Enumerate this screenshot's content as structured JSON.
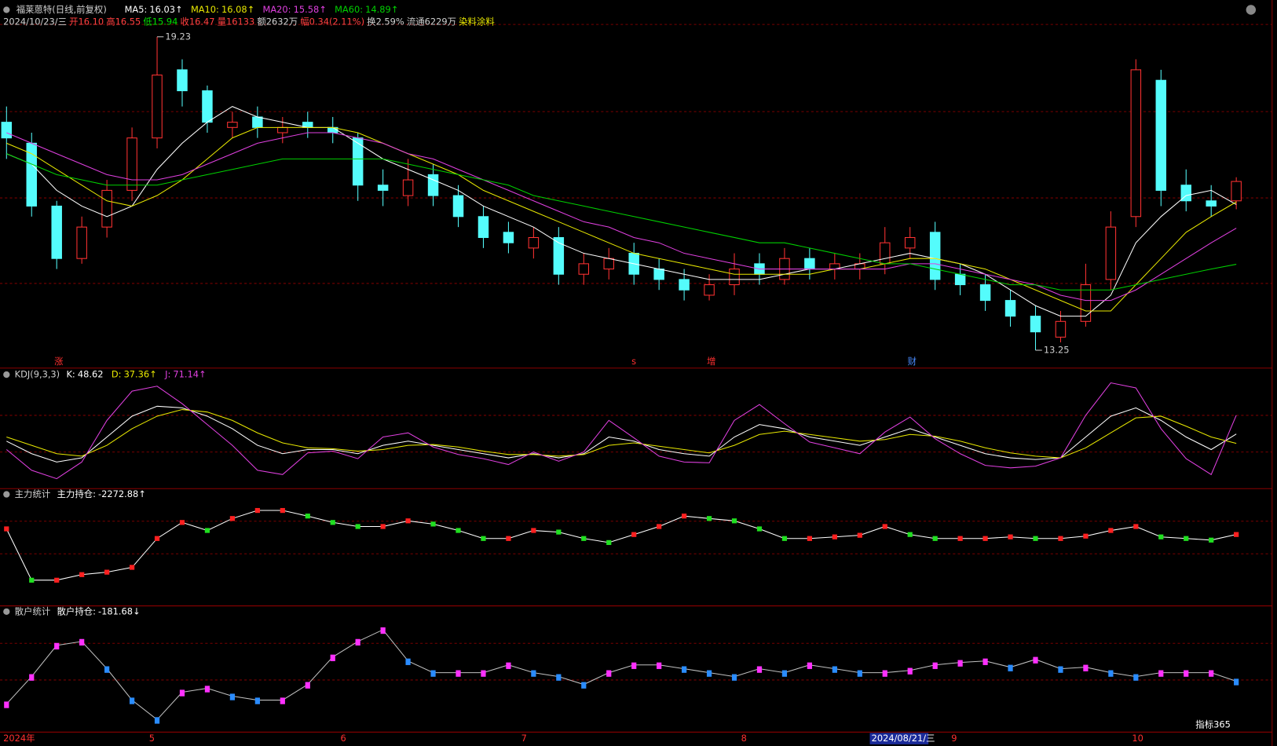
{
  "chart_data": {
    "type": "candlestick",
    "title": "福莱蒽特(日线,前复权)",
    "info": [
      {
        "text": "2024/10/23/三",
        "color": "#d0d0d0"
      },
      {
        "text": "开16.10",
        "color": "#ff4040"
      },
      {
        "text": "高16.55",
        "color": "#ff4040"
      },
      {
        "text": "低15.94",
        "color": "#00e000"
      },
      {
        "text": "收16.47",
        "color": "#ff4040"
      },
      {
        "text": "量16133",
        "color": "#ff4040"
      },
      {
        "text": "额2632万",
        "color": "#d0d0d0"
      },
      {
        "text": "幅0.34(2.11%)",
        "color": "#ff4040"
      },
      {
        "text": "换2.59%",
        "color": "#d0d0d0"
      },
      {
        "text": "流通6229万",
        "color": "#d0d0d0"
      },
      {
        "text": "染料涂料",
        "color": "#e8e800"
      }
    ],
    "up_color": "#ff3232",
    "down_color": "#54fcfc",
    "ylim": [
      12.94,
      19.62
    ],
    "open": [
      17.6,
      17.2,
      16.0,
      15.0,
      15.6,
      16.3,
      17.3,
      18.6,
      18.2,
      17.5,
      17.7,
      17.4,
      17.6,
      17.5,
      17.3,
      16.4,
      16.2,
      16.6,
      16.2,
      15.8,
      15.5,
      15.2,
      15.4,
      14.7,
      14.8,
      15.1,
      14.8,
      14.6,
      14.3,
      14.5,
      14.9,
      14.6,
      15.0,
      14.8,
      14.8,
      14.9,
      15.2,
      15.5,
      14.7,
      14.5,
      14.2,
      13.9,
      13.5,
      13.8,
      14.6,
      15.8,
      18.4,
      16.4,
      16.1,
      16.1
    ],
    "high": [
      17.9,
      17.4,
      16.1,
      15.8,
      16.5,
      17.5,
      19.23,
      18.8,
      18.3,
      17.8,
      17.9,
      17.7,
      17.8,
      17.7,
      17.4,
      16.7,
      16.9,
      16.8,
      16.4,
      16.0,
      15.7,
      15.6,
      15.6,
      15.1,
      15.2,
      15.3,
      15.0,
      14.8,
      14.7,
      15.1,
      15.1,
      15.2,
      15.2,
      15.1,
      15.1,
      15.6,
      15.6,
      15.7,
      14.9,
      14.7,
      14.4,
      14.1,
      14.0,
      14.9,
      15.9,
      18.8,
      18.6,
      16.7,
      16.4,
      16.55
    ],
    "low": [
      16.9,
      15.8,
      14.8,
      14.9,
      15.4,
      16.1,
      17.1,
      17.9,
      17.4,
      17.3,
      17.3,
      17.2,
      17.3,
      17.2,
      16.1,
      16.0,
      16.0,
      16.0,
      15.6,
      15.2,
      15.1,
      15.0,
      14.5,
      14.5,
      14.6,
      14.5,
      14.4,
      14.2,
      14.2,
      14.3,
      14.5,
      14.5,
      14.6,
      14.6,
      14.6,
      14.7,
      15.0,
      14.4,
      14.3,
      14.0,
      13.7,
      13.25,
      13.4,
      13.7,
      14.4,
      15.6,
      16.0,
      15.9,
      15.8,
      15.94
    ],
    "close": [
      17.3,
      16.0,
      15.0,
      15.6,
      16.3,
      17.3,
      18.5,
      18.2,
      17.6,
      17.6,
      17.5,
      17.5,
      17.5,
      17.4,
      16.4,
      16.3,
      16.5,
      16.2,
      15.8,
      15.4,
      15.3,
      15.4,
      14.7,
      14.9,
      15.0,
      14.7,
      14.6,
      14.4,
      14.5,
      14.8,
      14.7,
      15.0,
      14.8,
      14.9,
      14.9,
      15.3,
      15.4,
      14.6,
      14.5,
      14.2,
      13.9,
      13.6,
      13.8,
      14.5,
      15.6,
      18.6,
      16.3,
      16.1,
      16.0,
      16.47
    ],
    "annotations": [
      {
        "text": "19.23",
        "value": 19.23,
        "index": 6
      },
      {
        "text": "13.25",
        "value": 13.25,
        "index": 41
      }
    ],
    "events": [
      {
        "text": "涨",
        "index": 2
      },
      {
        "text": "s",
        "index": 25
      },
      {
        "text": "增",
        "index": 28
      },
      {
        "text": "财",
        "index": 36
      }
    ],
    "series": [
      {
        "name": "MA5:",
        "label": "16.03↑",
        "color": "#ffffff",
        "values": [
          17.0,
          16.8,
          16.3,
          16.0,
          15.8,
          16.0,
          16.7,
          17.2,
          17.6,
          17.9,
          17.7,
          17.6,
          17.5,
          17.5,
          17.2,
          16.9,
          16.7,
          16.5,
          16.3,
          16.0,
          15.8,
          15.6,
          15.3,
          15.1,
          15.0,
          14.9,
          14.8,
          14.7,
          14.6,
          14.6,
          14.6,
          14.7,
          14.8,
          14.8,
          14.9,
          15.0,
          15.1,
          15.0,
          14.9,
          14.7,
          14.4,
          14.1,
          13.9,
          13.9,
          14.3,
          15.3,
          15.8,
          16.2,
          16.3,
          16.03
        ]
      },
      {
        "name": "MA10:",
        "label": "16.08↑",
        "color": "#e8e800",
        "values": [
          17.2,
          17.0,
          16.7,
          16.4,
          16.1,
          16.0,
          16.2,
          16.5,
          16.9,
          17.3,
          17.5,
          17.5,
          17.5,
          17.5,
          17.4,
          17.2,
          17.0,
          16.8,
          16.6,
          16.3,
          16.1,
          15.9,
          15.7,
          15.5,
          15.3,
          15.1,
          15.0,
          14.9,
          14.8,
          14.7,
          14.7,
          14.7,
          14.7,
          14.8,
          14.8,
          14.9,
          15.0,
          15.0,
          14.9,
          14.8,
          14.6,
          14.4,
          14.2,
          14.0,
          14.0,
          14.5,
          15.0,
          15.5,
          15.8,
          16.08
        ]
      },
      {
        "name": "MA20:",
        "label": "15.58↑",
        "color": "#e040e0",
        "values": [
          17.4,
          17.2,
          17.0,
          16.8,
          16.6,
          16.5,
          16.5,
          16.6,
          16.8,
          17.0,
          17.2,
          17.3,
          17.4,
          17.4,
          17.3,
          17.2,
          17.0,
          16.9,
          16.7,
          16.5,
          16.3,
          16.1,
          15.9,
          15.7,
          15.6,
          15.4,
          15.3,
          15.1,
          15.0,
          14.9,
          14.8,
          14.8,
          14.8,
          14.8,
          14.8,
          14.8,
          14.9,
          14.9,
          14.8,
          14.7,
          14.6,
          14.5,
          14.3,
          14.2,
          14.2,
          14.4,
          14.7,
          15.0,
          15.3,
          15.58
        ]
      },
      {
        "name": "MA60:",
        "label": "14.89↑",
        "color": "#00d000",
        "values": [
          17.0,
          16.8,
          16.6,
          16.5,
          16.4,
          16.4,
          16.4,
          16.5,
          16.6,
          16.7,
          16.8,
          16.9,
          16.9,
          16.9,
          16.9,
          16.9,
          16.8,
          16.7,
          16.6,
          16.5,
          16.4,
          16.2,
          16.1,
          16.0,
          15.9,
          15.8,
          15.7,
          15.6,
          15.5,
          15.4,
          15.3,
          15.3,
          15.2,
          15.1,
          15.0,
          14.9,
          14.9,
          14.8,
          14.7,
          14.6,
          14.5,
          14.5,
          14.4,
          14.4,
          14.4,
          14.5,
          14.6,
          14.7,
          14.8,
          14.89
        ]
      }
    ],
    "panels": [
      {
        "type": "line",
        "title": "KDJ(9,3,3)",
        "ylim": [
          -15,
          115
        ],
        "series": [
          {
            "name": "K:",
            "label": "48.62",
            "color": "#ffffff",
            "values": [
              40,
              25,
              15,
              20,
              45,
              70,
              82,
              80,
              70,
              55,
              35,
              25,
              30,
              30,
              25,
              35,
              40,
              35,
              30,
              25,
              20,
              25,
              20,
              25,
              45,
              40,
              30,
              25,
              22,
              45,
              60,
              55,
              45,
              40,
              35,
              45,
              55,
              45,
              35,
              25,
              20,
              18,
              20,
              45,
              70,
              80,
              65,
              45,
              30,
              48.62
            ]
          },
          {
            "name": "D:",
            "label": "37.36↑",
            "color": "#e8e800",
            "values": [
              45,
              35,
              25,
              22,
              35,
              55,
              70,
              78,
              75,
              65,
              50,
              38,
              32,
              31,
              28,
              30,
              35,
              36,
              33,
              28,
              24,
              24,
              22,
              24,
              35,
              38,
              34,
              30,
              26,
              35,
              48,
              52,
              48,
              44,
              40,
              42,
              48,
              46,
              40,
              32,
              26,
              22,
              20,
              32,
              50,
              68,
              70,
              58,
              45,
              37.36
            ]
          },
          {
            "name": "J:",
            "label": "71.14↑",
            "color": "#e040e0",
            "values": [
              30,
              5,
              -5,
              15,
              65,
              100,
              106,
              85,
              60,
              35,
              5,
              0,
              26,
              28,
              19,
              45,
              50,
              33,
              24,
              19,
              12,
              27,
              16,
              27,
              65,
              44,
              22,
              15,
              14,
              65,
              84,
              61,
              39,
              32,
              25,
              51,
              69,
              43,
              25,
              11,
              8,
              10,
              20,
              71,
              110,
              104,
              55,
              19,
              0,
              71.14
            ]
          }
        ]
      },
      {
        "type": "dots",
        "title": "主力统计",
        "ylim": [
          -3165,
          -1800
        ],
        "up_color": "#ff2020",
        "down_color": "#20e020",
        "series": [
          {
            "name": "主力持仓:",
            "label": "-2272.88↑",
            "color": "#ffffff",
            "values": [
              -2199,
              -2871,
              -2871,
              -2798,
              -2766,
              -2703,
              -2325,
              -2115,
              -2220,
              -2063,
              -1958,
              -1958,
              -2031,
              -2115,
              -2168,
              -2168,
              -2094,
              -2136,
              -2220,
              -2325,
              -2325,
              -2220,
              -2241,
              -2325,
              -2378,
              -2273,
              -2168,
              -2031,
              -2063,
              -2094,
              -2199,
              -2325,
              -2325,
              -2304,
              -2283,
              -2168,
              -2273,
              -2325,
              -2325,
              -2325,
              -2304,
              -2325,
              -2325,
              -2294,
              -2220,
              -2168,
              -2304,
              -2325,
              -2346,
              -2272.88
            ]
          }
        ]
      },
      {
        "type": "dots",
        "title": "散户统计",
        "ylim": [
          -225,
          -125
        ],
        "up_color": "#ff30ff",
        "down_color": "#2a8cff",
        "series": [
          {
            "name": "散户持仓:",
            "label": "-181.68↓",
            "color": "#c0c0c0",
            "values": [
              -201.4,
              -177.7,
              -150.7,
              -147.3,
              -170.9,
              -198,
              -214.9,
              -191.2,
              -187.8,
              -194.6,
              -198,
              -198,
              -184.5,
              -160.8,
              -147.3,
              -137.2,
              -164.2,
              -174.3,
              -174.3,
              -174.3,
              -167.6,
              -174.3,
              -177.7,
              -184.5,
              -174.3,
              -167.6,
              -167.6,
              -170.9,
              -174.3,
              -177.7,
              -170.9,
              -174.3,
              -167.6,
              -170.9,
              -174.3,
              -174.3,
              -172.3,
              -167.6,
              -165.5,
              -164.2,
              -169.6,
              -162.8,
              -170.9,
              -169.6,
              -174.3,
              -177.7,
              -174.3,
              -174.3,
              -174.3,
              -181.68
            ]
          }
        ]
      }
    ],
    "x_labels": [
      "2024年",
      "5",
      "6",
      "7",
      "8",
      "2024/08/21/三",
      "9",
      "10"
    ],
    "logo": "指标365"
  }
}
